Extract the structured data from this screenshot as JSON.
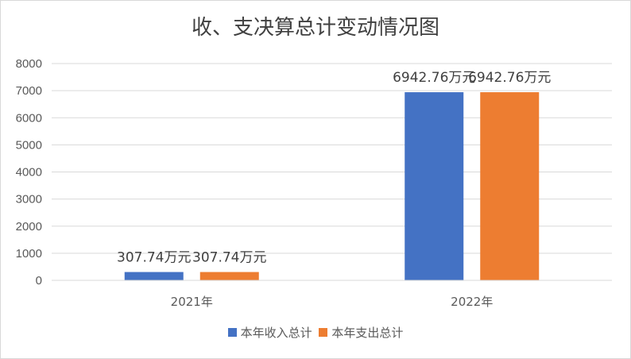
{
  "chart_data": {
    "type": "bar",
    "title": "收、支决算总计变动情况图",
    "categories": [
      "2021年",
      "2022年"
    ],
    "series": [
      {
        "name": "本年收入总计",
        "values": [
          307.74,
          6942.76
        ],
        "labels": [
          "307.74万元",
          "6942.76万元"
        ],
        "color": "#4472c4"
      },
      {
        "name": "本年支出总计",
        "values": [
          307.74,
          6942.76
        ],
        "labels": [
          "307.74万元",
          "6942.76万元"
        ],
        "color": "#ed7d31"
      }
    ],
    "ylim": [
      0,
      8000
    ],
    "yticks": [
      "0",
      "1000",
      "2000",
      "3000",
      "4000",
      "5000",
      "6000",
      "7000",
      "8000"
    ],
    "grid": true,
    "legend_position": "bottom"
  }
}
